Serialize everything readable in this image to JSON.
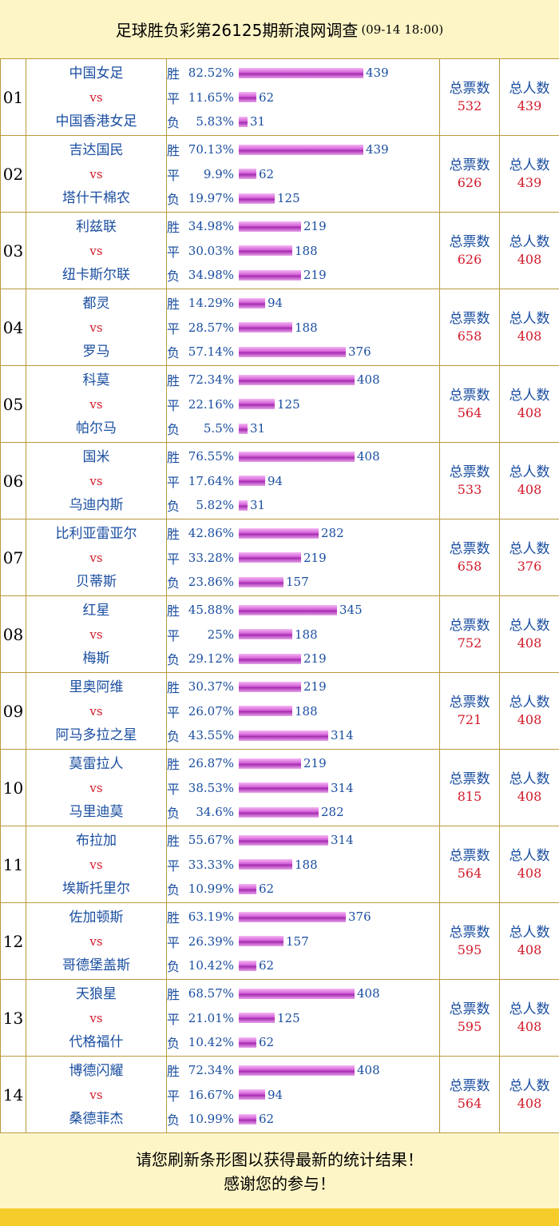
{
  "header": {
    "title": "足球胜负彩第26125期新浪网调查",
    "timestamp": "(09-14 18:00)"
  },
  "labels": {
    "vs": "vs",
    "win": "胜",
    "draw": "平",
    "lose": "负",
    "total_votes": "总票数",
    "total_people": "总人数"
  },
  "matches": [
    {
      "no": "01",
      "home": "中国女足",
      "away": "中国香港女足",
      "win_pct": "82.52%",
      "win": 439,
      "draw_pct": "11.65%",
      "draw": 62,
      "lose_pct": "5.83%",
      "lose": 31,
      "total": "532",
      "people": "439"
    },
    {
      "no": "02",
      "home": "吉达国民",
      "away": "塔什干棉农",
      "win_pct": "70.13%",
      "win": 439,
      "draw_pct": "9.9%",
      "draw": 62,
      "lose_pct": "19.97%",
      "lose": 125,
      "total": "626",
      "people": "439"
    },
    {
      "no": "03",
      "home": "利兹联",
      "away": "纽卡斯尔联",
      "win_pct": "34.98%",
      "win": 219,
      "draw_pct": "30.03%",
      "draw": 188,
      "lose_pct": "34.98%",
      "lose": 219,
      "total": "626",
      "people": "408"
    },
    {
      "no": "04",
      "home": "都灵",
      "away": "罗马",
      "win_pct": "14.29%",
      "win": 94,
      "draw_pct": "28.57%",
      "draw": 188,
      "lose_pct": "57.14%",
      "lose": 376,
      "total": "658",
      "people": "408"
    },
    {
      "no": "05",
      "home": "科莫",
      "away": "帕尔马",
      "win_pct": "72.34%",
      "win": 408,
      "draw_pct": "22.16%",
      "draw": 125,
      "lose_pct": "5.5%",
      "lose": 31,
      "total": "564",
      "people": "408"
    },
    {
      "no": "06",
      "home": "国米",
      "away": "乌迪内斯",
      "win_pct": "76.55%",
      "win": 408,
      "draw_pct": "17.64%",
      "draw": 94,
      "lose_pct": "5.82%",
      "lose": 31,
      "total": "533",
      "people": "408"
    },
    {
      "no": "07",
      "home": "比利亚雷亚尔",
      "away": "贝蒂斯",
      "win_pct": "42.86%",
      "win": 282,
      "draw_pct": "33.28%",
      "draw": 219,
      "lose_pct": "23.86%",
      "lose": 157,
      "total": "658",
      "people": "376"
    },
    {
      "no": "08",
      "home": "红星",
      "away": "梅斯",
      "win_pct": "45.88%",
      "win": 345,
      "draw_pct": "25%",
      "draw": 188,
      "lose_pct": "29.12%",
      "lose": 219,
      "total": "752",
      "people": "408"
    },
    {
      "no": "09",
      "home": "里奥阿维",
      "away": "阿马多拉之星",
      "win_pct": "30.37%",
      "win": 219,
      "draw_pct": "26.07%",
      "draw": 188,
      "lose_pct": "43.55%",
      "lose": 314,
      "total": "721",
      "people": "408"
    },
    {
      "no": "10",
      "home": "莫雷拉人",
      "away": "马里迪莫",
      "win_pct": "26.87%",
      "win": 219,
      "draw_pct": "38.53%",
      "draw": 314,
      "lose_pct": "34.6%",
      "lose": 282,
      "total": "815",
      "people": "408"
    },
    {
      "no": "11",
      "home": "布拉加",
      "away": "埃斯托里尔",
      "win_pct": "55.67%",
      "win": 314,
      "draw_pct": "33.33%",
      "draw": 188,
      "lose_pct": "10.99%",
      "lose": 62,
      "total": "564",
      "people": "408"
    },
    {
      "no": "12",
      "home": "佐加顿斯",
      "away": "哥德堡盖斯",
      "win_pct": "63.19%",
      "win": 376,
      "draw_pct": "26.39%",
      "draw": 157,
      "lose_pct": "10.42%",
      "lose": 62,
      "total": "595",
      "people": "408"
    },
    {
      "no": "13",
      "home": "天狼星",
      "away": "代格福什",
      "win_pct": "68.57%",
      "win": 408,
      "draw_pct": "21.01%",
      "draw": 125,
      "lose_pct": "10.42%",
      "lose": 62,
      "total": "595",
      "people": "408"
    },
    {
      "no": "14",
      "home": "博德闪耀",
      "away": "桑德菲杰",
      "win_pct": "72.34%",
      "win": 408,
      "draw_pct": "16.67%",
      "draw": 94,
      "lose_pct": "10.99%",
      "lose": 62,
      "total": "564",
      "people": "408"
    }
  ],
  "footer": {
    "line1": "请您刷新条形图以获得最新的统计结果！",
    "line2": "感谢您的参与！"
  }
}
